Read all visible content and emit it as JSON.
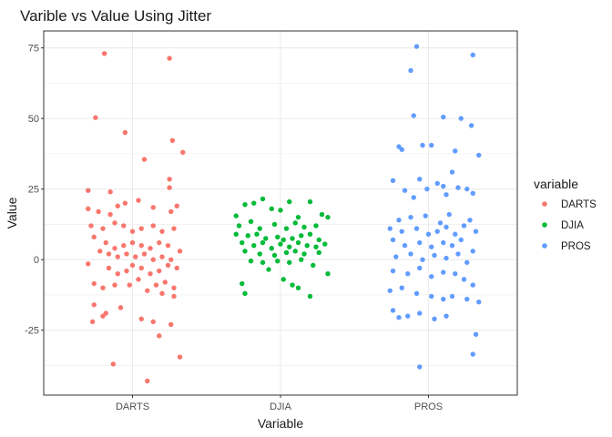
{
  "chart_data": {
    "type": "scatter",
    "title": "Varible vs Value Using Jitter",
    "xlabel": "Variable",
    "ylabel": "Value",
    "categories": [
      "DARTS",
      "DJIA",
      "PROS"
    ],
    "ylim": [
      -48,
      81
    ],
    "yticks": [
      -25,
      0,
      25,
      50,
      75
    ],
    "grid": true,
    "legend": {
      "title": "variable",
      "position": "right"
    },
    "series": [
      {
        "name": "DARTS",
        "color": "#f8766d",
        "points": [
          [
            -0.19,
            73
          ],
          [
            -0.25,
            50.3
          ],
          [
            -0.05,
            45
          ],
          [
            0.08,
            35.5
          ],
          [
            0.25,
            71.3
          ],
          [
            0.27,
            42.2
          ],
          [
            0.34,
            38
          ],
          [
            0.25,
            28.5
          ],
          [
            0.25,
            25.5
          ],
          [
            -0.3,
            24.5
          ],
          [
            -0.15,
            24
          ],
          [
            -0.3,
            18
          ],
          [
            -0.23,
            17
          ],
          [
            -0.15,
            16
          ],
          [
            -0.1,
            19
          ],
          [
            -0.05,
            20
          ],
          [
            0.04,
            21
          ],
          [
            0.14,
            18.5
          ],
          [
            0.26,
            17
          ],
          [
            0.3,
            19
          ],
          [
            -0.28,
            12
          ],
          [
            -0.2,
            11
          ],
          [
            -0.12,
            13
          ],
          [
            -0.06,
            12
          ],
          [
            0.0,
            10
          ],
          [
            0.06,
            11
          ],
          [
            0.14,
            12
          ],
          [
            0.2,
            10
          ],
          [
            0.28,
            11
          ],
          [
            -0.26,
            8
          ],
          [
            -0.18,
            6
          ],
          [
            -0.12,
            4
          ],
          [
            -0.06,
            5
          ],
          [
            0.0,
            6
          ],
          [
            0.06,
            5
          ],
          [
            0.12,
            4
          ],
          [
            0.18,
            6
          ],
          [
            0.24,
            5
          ],
          [
            -0.22,
            3
          ],
          [
            -0.16,
            2
          ],
          [
            -0.1,
            1
          ],
          [
            -0.04,
            2
          ],
          [
            0.02,
            1
          ],
          [
            0.08,
            2
          ],
          [
            0.14,
            0
          ],
          [
            0.2,
            1
          ],
          [
            0.26,
            0
          ],
          [
            0.32,
            3
          ],
          [
            -0.3,
            -1.5
          ],
          [
            -0.16,
            -3
          ],
          [
            -0.1,
            -5
          ],
          [
            -0.04,
            -4
          ],
          [
            0.0,
            -2
          ],
          [
            0.06,
            -3
          ],
          [
            0.12,
            -5
          ],
          [
            0.18,
            -4
          ],
          [
            0.24,
            -2
          ],
          [
            0.3,
            -3
          ],
          [
            -0.26,
            -8.5
          ],
          [
            -0.2,
            -10
          ],
          [
            -0.12,
            -9
          ],
          [
            -0.02,
            -9
          ],
          [
            0.04,
            -7
          ],
          [
            0.1,
            -11
          ],
          [
            0.16,
            -9
          ],
          [
            0.22,
            -8
          ],
          [
            0.28,
            -10
          ],
          [
            -0.26,
            -16
          ],
          [
            -0.18,
            -19
          ],
          [
            -0.08,
            -17
          ],
          [
            0.2,
            -12
          ],
          [
            0.28,
            -13
          ],
          [
            -0.27,
            -22
          ],
          [
            -0.2,
            -20
          ],
          [
            0.06,
            -21
          ],
          [
            0.14,
            -22
          ],
          [
            0.26,
            -23
          ],
          [
            0.18,
            -27
          ],
          [
            -0.13,
            -37
          ],
          [
            0.32,
            -34.5
          ],
          [
            0.1,
            -43
          ]
        ]
      },
      {
        "name": "DJIA",
        "color": "#00ba38",
        "points": [
          [
            -0.3,
            15.5
          ],
          [
            -0.24,
            19.5
          ],
          [
            -0.18,
            20
          ],
          [
            -0.12,
            21.5
          ],
          [
            -0.06,
            18
          ],
          [
            0.0,
            17.5
          ],
          [
            0.06,
            20.5
          ],
          [
            0.12,
            15
          ],
          [
            0.2,
            20.5
          ],
          [
            0.28,
            16
          ],
          [
            0.32,
            15
          ],
          [
            -0.28,
            12
          ],
          [
            -0.2,
            13.5
          ],
          [
            -0.14,
            11
          ],
          [
            -0.04,
            12.5
          ],
          [
            0.04,
            11
          ],
          [
            0.1,
            13
          ],
          [
            0.16,
            11.5
          ],
          [
            0.24,
            12
          ],
          [
            -0.3,
            9
          ],
          [
            -0.22,
            8.5
          ],
          [
            -0.16,
            9
          ],
          [
            -0.1,
            7.5
          ],
          [
            -0.02,
            8
          ],
          [
            0.02,
            7
          ],
          [
            0.08,
            7.5
          ],
          [
            0.14,
            8.5
          ],
          [
            0.2,
            9
          ],
          [
            0.26,
            7
          ],
          [
            -0.26,
            6
          ],
          [
            -0.18,
            5
          ],
          [
            -0.12,
            6
          ],
          [
            -0.06,
            4
          ],
          [
            0.0,
            5.5
          ],
          [
            0.06,
            4.5
          ],
          [
            0.12,
            6
          ],
          [
            0.18,
            5
          ],
          [
            0.24,
            4.5
          ],
          [
            0.3,
            5.5
          ],
          [
            -0.24,
            3
          ],
          [
            -0.14,
            2
          ],
          [
            -0.04,
            1.5
          ],
          [
            0.04,
            2.5
          ],
          [
            0.1,
            3
          ],
          [
            0.16,
            2
          ],
          [
            0.26,
            2.5
          ],
          [
            -0.2,
            -0.5
          ],
          [
            -0.12,
            -1
          ],
          [
            -0.02,
            -0.5
          ],
          [
            0.06,
            -1
          ],
          [
            0.14,
            0
          ],
          [
            0.22,
            -2
          ],
          [
            0.32,
            -5
          ],
          [
            -0.08,
            -3.5
          ],
          [
            0.02,
            -7
          ],
          [
            -0.26,
            -8.5
          ],
          [
            -0.24,
            -12
          ],
          [
            0.08,
            -9
          ],
          [
            0.12,
            -10
          ],
          [
            0.2,
            -13
          ]
        ]
      },
      {
        "name": "PROS",
        "color": "#619cff",
        "points": [
          [
            -0.08,
            75.5
          ],
          [
            -0.12,
            67
          ],
          [
            0.3,
            72.5
          ],
          [
            -0.1,
            51
          ],
          [
            0.1,
            50.5
          ],
          [
            0.22,
            50
          ],
          [
            0.29,
            47.5
          ],
          [
            -0.2,
            40
          ],
          [
            -0.18,
            39
          ],
          [
            -0.04,
            40.5
          ],
          [
            0.02,
            40.5
          ],
          [
            0.18,
            38.5
          ],
          [
            0.34,
            37
          ],
          [
            -0.24,
            28
          ],
          [
            -0.06,
            28.5
          ],
          [
            0.1,
            26
          ],
          [
            0.16,
            31
          ],
          [
            0.26,
            25
          ],
          [
            0.3,
            23.5
          ],
          [
            -0.16,
            24.5
          ],
          [
            -0.1,
            22
          ],
          [
            -0.01,
            25
          ],
          [
            0.06,
            27
          ],
          [
            0.12,
            23
          ],
          [
            0.2,
            25.5
          ],
          [
            -0.2,
            14
          ],
          [
            -0.12,
            15
          ],
          [
            -0.02,
            15.5
          ],
          [
            0.08,
            13
          ],
          [
            0.14,
            16
          ],
          [
            0.28,
            14
          ],
          [
            -0.26,
            11
          ],
          [
            -0.18,
            10
          ],
          [
            -0.08,
            11
          ],
          [
            0.0,
            9
          ],
          [
            0.06,
            10
          ],
          [
            0.12,
            11.5
          ],
          [
            0.18,
            9
          ],
          [
            0.24,
            12
          ],
          [
            0.32,
            10
          ],
          [
            -0.24,
            7
          ],
          [
            -0.16,
            5
          ],
          [
            -0.06,
            6
          ],
          [
            0.02,
            4.5
          ],
          [
            0.1,
            6
          ],
          [
            0.16,
            5
          ],
          [
            0.22,
            7
          ],
          [
            0.3,
            3
          ],
          [
            -0.22,
            1
          ],
          [
            -0.12,
            2
          ],
          [
            -0.04,
            0
          ],
          [
            0.04,
            1.5
          ],
          [
            0.12,
            0.5
          ],
          [
            0.2,
            2
          ],
          [
            0.26,
            -1
          ],
          [
            -0.24,
            -4
          ],
          [
            -0.14,
            -5
          ],
          [
            -0.06,
            -3
          ],
          [
            0.02,
            -6
          ],
          [
            0.1,
            -4.5
          ],
          [
            0.18,
            -5
          ],
          [
            0.24,
            -7
          ],
          [
            0.3,
            -9
          ],
          [
            -0.26,
            -11
          ],
          [
            -0.18,
            -10
          ],
          [
            -0.08,
            -12
          ],
          [
            0.02,
            -13
          ],
          [
            0.1,
            -14
          ],
          [
            0.16,
            -13
          ],
          [
            0.26,
            -14
          ],
          [
            0.34,
            -15
          ],
          [
            -0.24,
            -18
          ],
          [
            -0.14,
            -20
          ],
          [
            -0.06,
            -19
          ],
          [
            0.04,
            -21
          ],
          [
            0.12,
            -20
          ],
          [
            -0.2,
            -20.5
          ],
          [
            0.32,
            -26.5
          ],
          [
            0.3,
            -33.5
          ],
          [
            -0.06,
            -38
          ]
        ]
      }
    ]
  }
}
